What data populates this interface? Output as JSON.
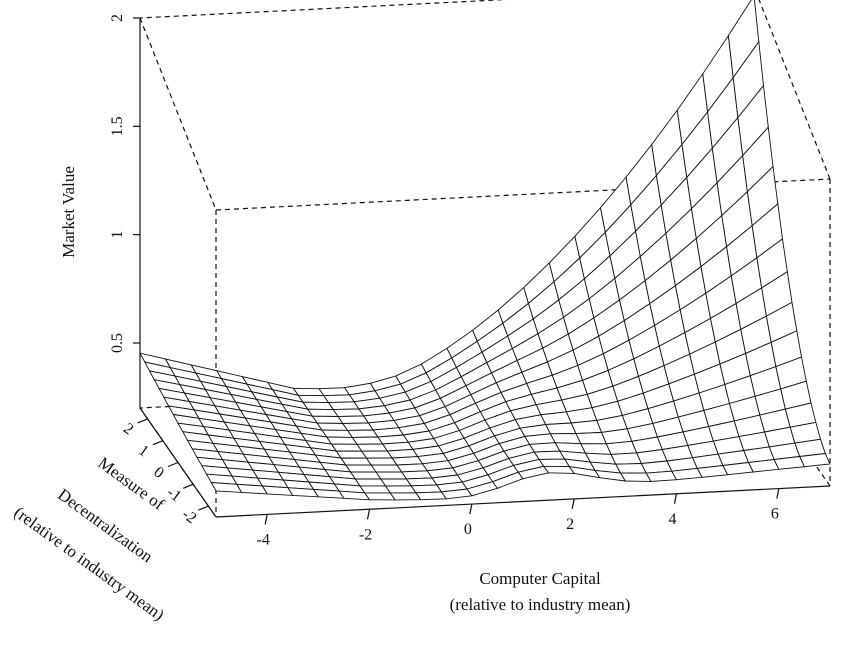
{
  "chart_data": {
    "type": "surface3d",
    "title": "",
    "zlabel": "Market Value",
    "xlabel": [
      "Computer Capital",
      "(relative to industry mean)"
    ],
    "ylabel": [
      "Measure of",
      "Decentralization",
      "(relative to industry mean)"
    ],
    "x_ticks": [
      "-4",
      "-2",
      "0",
      "2",
      "4",
      "6"
    ],
    "y_ticks": [
      "2",
      "1",
      "0",
      "-1",
      "-2"
    ],
    "z_ticks": [
      "2",
      "1.5",
      "1",
      "0.5"
    ],
    "x_range": [
      -5,
      7
    ],
    "y_range": [
      -2.5,
      2.5
    ],
    "z_range": [
      0.2,
      2
    ],
    "box": "dashed",
    "surface": {
      "description_free": true,
      "x_grid_count": 24,
      "y_grid_count": 16,
      "z_at": {
        "x_-5_y_2.5": 0.3,
        "x_7_y_2.5": 1.85,
        "x_0_y_0": 0.2,
        "x_7_y_-2.5": 0.3
      }
    }
  }
}
